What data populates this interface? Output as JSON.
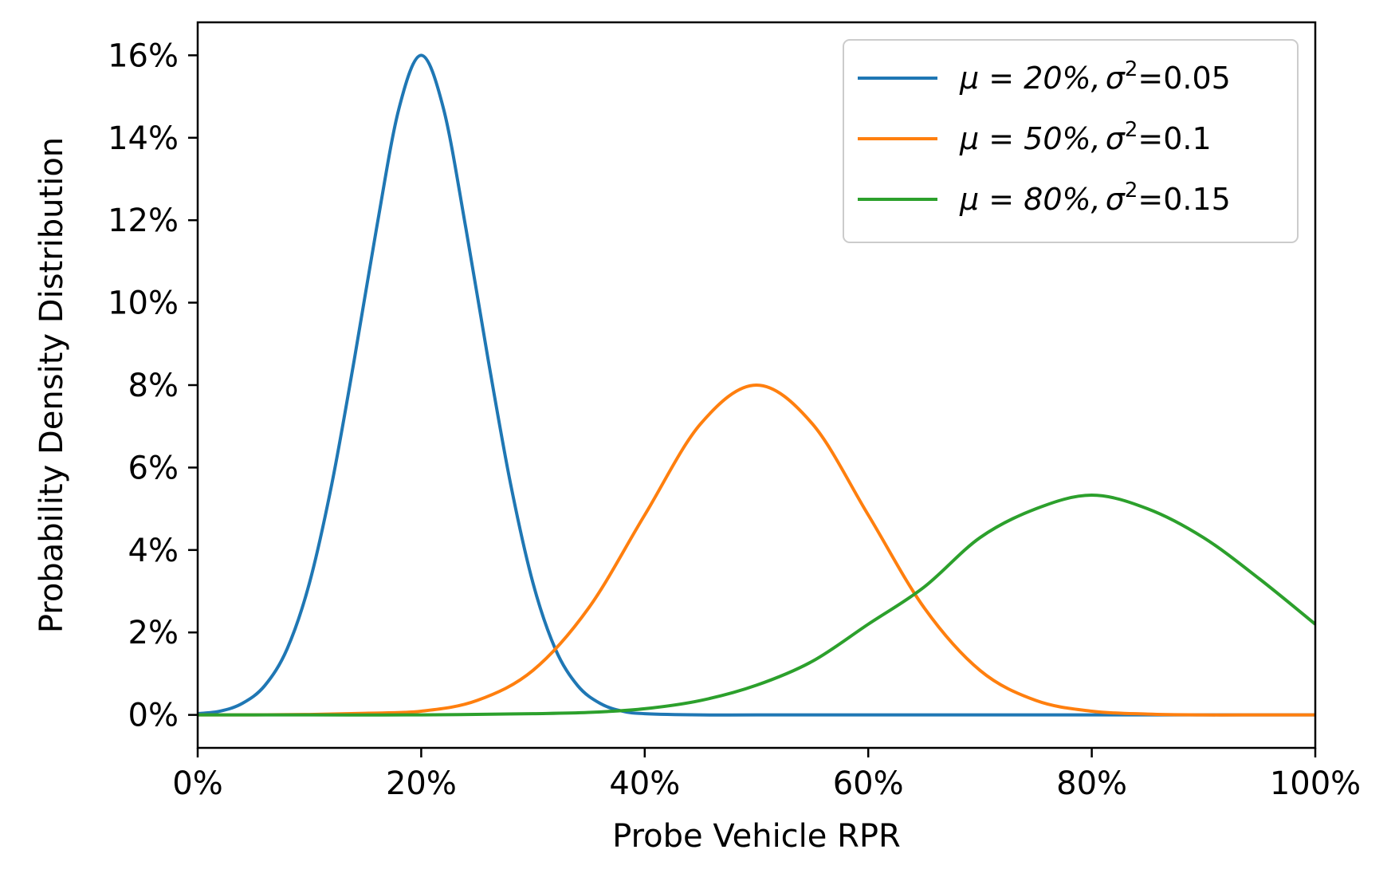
{
  "chart_data": {
    "type": "line",
    "xlabel": "Probe Vehicle RPR",
    "ylabel": "Probability Density Distribution",
    "xlim": [
      0,
      100
    ],
    "ylim": [
      -0.8,
      16.8
    ],
    "x_ticks": [
      0,
      20,
      40,
      60,
      80,
      100
    ],
    "x_tick_labels": [
      "0%",
      "20%",
      "40%",
      "60%",
      "80%",
      "100%"
    ],
    "y_ticks": [
      0,
      2,
      4,
      6,
      8,
      10,
      12,
      14,
      16
    ],
    "y_tick_labels": [
      "0%",
      "2%",
      "4%",
      "6%",
      "8%",
      "10%",
      "12%",
      "14%",
      "16%"
    ],
    "grid": false,
    "legend_position": "top-right",
    "series": [
      {
        "label_mu": "μ = 20%,",
        "label_sigma": "σ",
        "label_sup": "2",
        "label_val": "=0.05",
        "color": "#1f77b4",
        "x": [
          0,
          2,
          4,
          6,
          8,
          10,
          12,
          14,
          16,
          18,
          20,
          22,
          24,
          26,
          28,
          30,
          32,
          34,
          36,
          38,
          40,
          45,
          50,
          60,
          70,
          80,
          90,
          100
        ],
        "y": [
          0.03,
          0.09,
          0.28,
          0.71,
          1.6,
          3.2,
          5.6,
          8.6,
          11.8,
          14.7,
          16.0,
          14.7,
          11.8,
          8.6,
          5.6,
          3.2,
          1.6,
          0.71,
          0.28,
          0.09,
          0.03,
          0.0,
          0.0,
          0.0,
          0.0,
          0.0,
          0.0,
          0.0
        ]
      },
      {
        "label_mu": "μ = 50%,",
        "label_sigma": "σ",
        "label_sup": "2",
        "label_val": "=0.1",
        "color": "#ff7f0e",
        "x": [
          0,
          5,
          10,
          15,
          20,
          25,
          30,
          35,
          40,
          45,
          50,
          55,
          60,
          65,
          70,
          75,
          80,
          85,
          90,
          95,
          100
        ],
        "y": [
          0.0,
          0.0,
          0.01,
          0.04,
          0.09,
          0.35,
          1.08,
          2.6,
          4.85,
          7.06,
          8.0,
          7.06,
          4.85,
          2.6,
          1.08,
          0.35,
          0.09,
          0.02,
          0.0,
          0.0,
          0.0
        ]
      },
      {
        "label_mu": "μ = 80%,",
        "label_sigma": "σ",
        "label_sup": "2",
        "label_val": "=0.15",
        "color": "#2ca02c",
        "x": [
          0,
          10,
          20,
          30,
          35,
          40,
          45,
          50,
          55,
          60,
          65,
          70,
          75,
          80,
          85,
          90,
          95,
          100
        ],
        "y": [
          0.0,
          0.0,
          0.0,
          0.03,
          0.06,
          0.15,
          0.35,
          0.72,
          1.3,
          2.2,
          3.1,
          4.3,
          5.0,
          5.33,
          5.0,
          4.3,
          3.3,
          2.2
        ]
      }
    ]
  }
}
